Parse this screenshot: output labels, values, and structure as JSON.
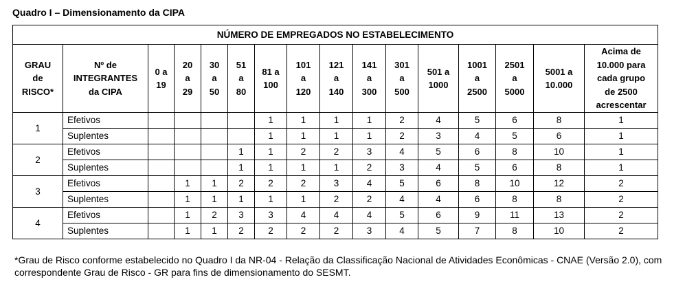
{
  "document": {
    "title": "Quadro I – Dimensionamento da CIPA",
    "footnote": "*Grau de Risco conforme estabelecido no Quadro I da NR-04 - Relação da Classificação Nacional de Atividades Econômicas - CNAE (Versão 2.0), com correspondente Grau de Risco - GR para fins de dimensionamento do SESMT."
  },
  "table": {
    "group_header": "NÚMERO DE EMPREGADOS NO ESTABELECIMENTO",
    "risk_header": "GRAU\nde\nRISCO*",
    "members_header": "Nº de\nINTEGRANTES\nda CIPA",
    "employee_ranges": [
      "0 a\n19",
      "20\na\n29",
      "30\na\n50",
      "51\na\n80",
      "81 a\n100",
      "101\na\n120",
      "121\na\n140",
      "141\na\n300",
      "301\na\n500",
      "501 a\n1000",
      "1001\na\n2500",
      "2501\na\n5000",
      "5001 a\n10.000",
      "Acima de\n10.000 para\ncada grupo\nde 2500\nacrescentar"
    ],
    "risk_groups": [
      {
        "grade": "1",
        "rows": [
          {
            "member_type": "Efetivos",
            "values": [
              null,
              null,
              null,
              null,
              1,
              1,
              1,
              1,
              2,
              4,
              5,
              6,
              8,
              1
            ]
          },
          {
            "member_type": "Suplentes",
            "values": [
              null,
              null,
              null,
              null,
              1,
              1,
              1,
              1,
              2,
              3,
              4,
              5,
              6,
              1
            ]
          }
        ]
      },
      {
        "grade": "2",
        "rows": [
          {
            "member_type": "Efetivos",
            "values": [
              null,
              null,
              null,
              1,
              1,
              2,
              2,
              3,
              4,
              5,
              6,
              8,
              10,
              1
            ]
          },
          {
            "member_type": "Suplentes",
            "values": [
              null,
              null,
              null,
              1,
              1,
              1,
              1,
              2,
              3,
              4,
              5,
              6,
              8,
              1
            ]
          }
        ]
      },
      {
        "grade": "3",
        "rows": [
          {
            "member_type": "Efetivos",
            "values": [
              null,
              1,
              1,
              2,
              2,
              2,
              3,
              4,
              5,
              6,
              8,
              10,
              12,
              2
            ]
          },
          {
            "member_type": "Suplentes",
            "values": [
              null,
              1,
              1,
              1,
              1,
              1,
              2,
              2,
              4,
              4,
              6,
              8,
              8,
              2
            ]
          }
        ]
      },
      {
        "grade": "4",
        "rows": [
          {
            "member_type": "Efetivos",
            "values": [
              null,
              1,
              2,
              3,
              3,
              4,
              4,
              4,
              5,
              6,
              9,
              11,
              13,
              2
            ]
          },
          {
            "member_type": "Suplentes",
            "values": [
              null,
              1,
              1,
              2,
              2,
              2,
              2,
              3,
              4,
              5,
              7,
              8,
              10,
              2
            ]
          }
        ]
      }
    ]
  }
}
